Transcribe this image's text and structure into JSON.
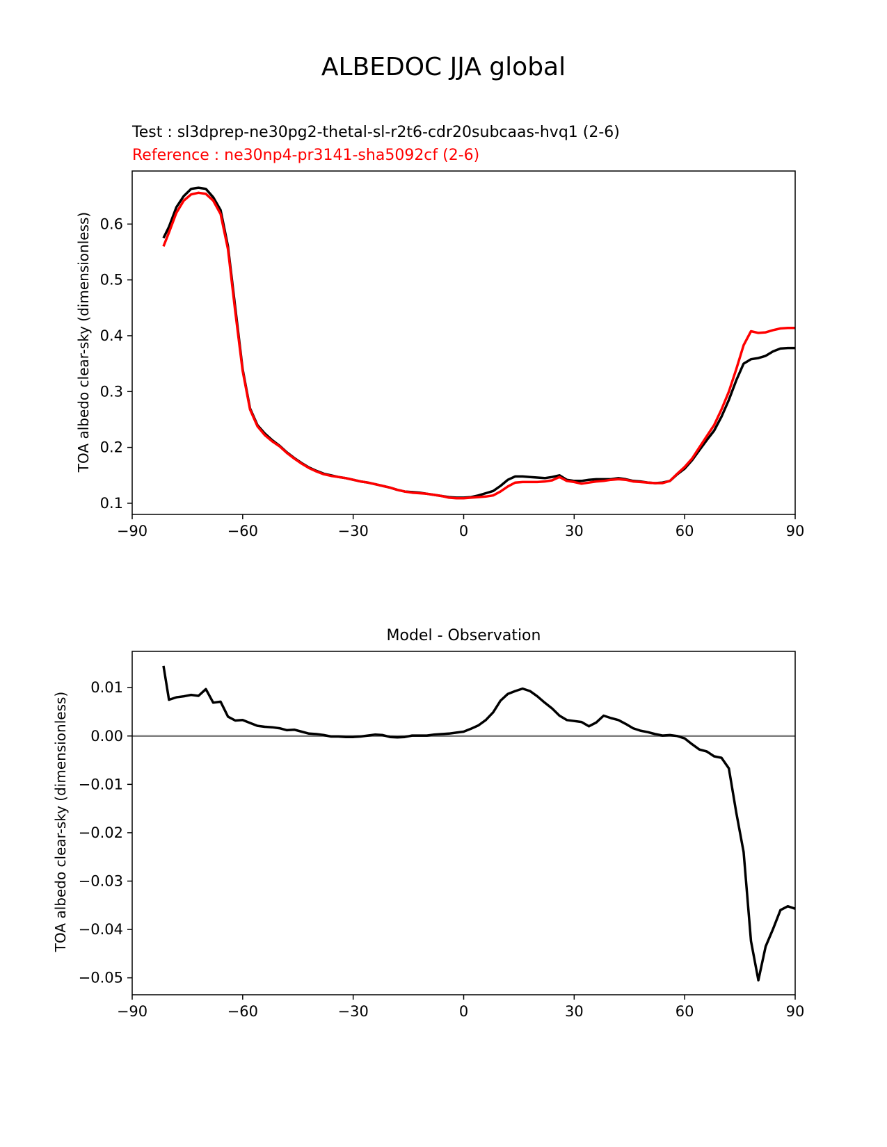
{
  "figure": {
    "title": "ALBEDOC JJA global"
  },
  "chart_data": [
    {
      "type": "line",
      "test_label": "Test : sl3dprep-ne30pg2-thetal-sl-r2t6-cdr20subcaas-hvq1 (2-6)",
      "reference_label": "Reference : ne30np4-pr3141-sha5092cf (2-6)",
      "xlabel": "",
      "ylabel": "TOA albedo clear-sky (dimensionless)",
      "xlim": [
        -90,
        90
      ],
      "ylim": [
        0.08,
        0.695
      ],
      "xticks": [
        -90,
        -60,
        -30,
        0,
        30,
        60,
        90
      ],
      "xtick_labels": [
        "−90",
        "−60",
        "−30",
        "0",
        "30",
        "60",
        "90"
      ],
      "yticks": [
        0.1,
        0.2,
        0.3,
        0.4,
        0.5,
        0.6
      ],
      "ytick_labels": [
        "0.1",
        "0.2",
        "0.3",
        "0.4",
        "0.5",
        "0.6"
      ],
      "grid": false,
      "series": [
        {
          "role": "test",
          "color": "#000000",
          "x": [
            -81.5,
            -80,
            -78,
            -76,
            -74,
            -72,
            -70,
            -68,
            -66,
            -64,
            -62,
            -60,
            -58,
            -56,
            -54,
            -52,
            -50,
            -48,
            -46,
            -44,
            -42,
            -40,
            -38,
            -36,
            -34,
            -32,
            -30,
            -28,
            -26,
            -24,
            -22,
            -20,
            -18,
            -16,
            -14,
            -12,
            -10,
            -8,
            -6,
            -4,
            -2,
            0,
            2,
            4,
            6,
            8,
            10,
            12,
            14,
            16,
            18,
            20,
            22,
            24,
            26,
            28,
            30,
            32,
            34,
            36,
            38,
            40,
            42,
            44,
            46,
            48,
            50,
            52,
            54,
            56,
            58,
            60,
            62,
            64,
            66,
            68,
            70,
            72,
            74,
            76,
            78,
            80,
            82,
            84,
            86,
            88,
            90
          ],
          "y": [
            0.575,
            0.595,
            0.63,
            0.65,
            0.663,
            0.665,
            0.663,
            0.648,
            0.625,
            0.56,
            0.45,
            0.34,
            0.27,
            0.24,
            0.225,
            0.213,
            0.203,
            0.191,
            0.181,
            0.172,
            0.164,
            0.158,
            0.153,
            0.15,
            0.147,
            0.145,
            0.142,
            0.139,
            0.137,
            0.134,
            0.131,
            0.128,
            0.124,
            0.121,
            0.12,
            0.119,
            0.117,
            0.115,
            0.113,
            0.111,
            0.11,
            0.11,
            0.111,
            0.114,
            0.118,
            0.122,
            0.131,
            0.142,
            0.148,
            0.148,
            0.147,
            0.146,
            0.145,
            0.147,
            0.15,
            0.142,
            0.14,
            0.14,
            0.142,
            0.143,
            0.143,
            0.143,
            0.145,
            0.143,
            0.14,
            0.139,
            0.137,
            0.136,
            0.137,
            0.14,
            0.152,
            0.162,
            0.177,
            0.195,
            0.213,
            0.23,
            0.255,
            0.285,
            0.32,
            0.35,
            0.358,
            0.36,
            0.364,
            0.372,
            0.377,
            0.378,
            0.378
          ]
        },
        {
          "role": "reference",
          "color": "#ff0000",
          "x": [
            -81.5,
            -80,
            -78,
            -76,
            -74,
            -72,
            -70,
            -68,
            -66,
            -64,
            -62,
            -60,
            -58,
            -56,
            -54,
            -52,
            -50,
            -48,
            -46,
            -44,
            -42,
            -40,
            -38,
            -36,
            -34,
            -32,
            -30,
            -28,
            -26,
            -24,
            -22,
            -20,
            -18,
            -16,
            -14,
            -12,
            -10,
            -8,
            -6,
            -4,
            -2,
            0,
            2,
            4,
            6,
            8,
            10,
            12,
            14,
            16,
            18,
            20,
            22,
            24,
            26,
            28,
            30,
            32,
            34,
            36,
            38,
            40,
            42,
            44,
            46,
            48,
            50,
            52,
            54,
            56,
            58,
            60,
            62,
            64,
            66,
            68,
            70,
            72,
            74,
            76,
            78,
            80,
            82,
            84,
            86,
            88,
            90
          ],
          "y": [
            0.56,
            0.585,
            0.62,
            0.642,
            0.653,
            0.656,
            0.654,
            0.642,
            0.618,
            0.555,
            0.443,
            0.337,
            0.268,
            0.238,
            0.222,
            0.211,
            0.202,
            0.19,
            0.18,
            0.171,
            0.163,
            0.157,
            0.152,
            0.149,
            0.147,
            0.145,
            0.142,
            0.139,
            0.137,
            0.134,
            0.131,
            0.128,
            0.124,
            0.121,
            0.119,
            0.118,
            0.117,
            0.115,
            0.113,
            0.11,
            0.109,
            0.109,
            0.11,
            0.111,
            0.112,
            0.114,
            0.121,
            0.13,
            0.137,
            0.138,
            0.138,
            0.138,
            0.139,
            0.141,
            0.147,
            0.14,
            0.138,
            0.135,
            0.137,
            0.139,
            0.14,
            0.142,
            0.143,
            0.142,
            0.139,
            0.138,
            0.137,
            0.136,
            0.136,
            0.14,
            0.153,
            0.165,
            0.18,
            0.2,
            0.22,
            0.24,
            0.268,
            0.3,
            0.34,
            0.383,
            0.408,
            0.405,
            0.406,
            0.41,
            0.413,
            0.414,
            0.414
          ]
        }
      ]
    },
    {
      "type": "line",
      "title": "Model - Observation",
      "xlabel": "",
      "ylabel": "TOA albedo clear-sky (dimensionless)",
      "xlim": [
        -90,
        90
      ],
      "ylim": [
        -0.0535,
        0.0175
      ],
      "xticks": [
        -90,
        -60,
        -30,
        0,
        30,
        60,
        90
      ],
      "xtick_labels": [
        "−90",
        "−60",
        "−30",
        "0",
        "30",
        "60",
        "90"
      ],
      "yticks": [
        0.01,
        0.0,
        -0.01,
        -0.02,
        -0.03,
        -0.04,
        -0.05
      ],
      "ytick_labels": [
        "0.01",
        "0.00",
        "−0.01",
        "−0.02",
        "−0.03",
        "−0.04",
        "−0.05"
      ],
      "grid": false,
      "zero_line_color": "#808080",
      "series": [
        {
          "role": "difference",
          "color": "#000000",
          "x": [
            -81.5,
            -80,
            -78,
            -76,
            -74,
            -72,
            -70,
            -68,
            -66,
            -64,
            -62,
            -60,
            -58,
            -56,
            -54,
            -52,
            -50,
            -48,
            -46,
            -44,
            -42,
            -40,
            -38,
            -36,
            -34,
            -32,
            -30,
            -28,
            -26,
            -24,
            -22,
            -20,
            -18,
            -16,
            -14,
            -12,
            -10,
            -8,
            -6,
            -4,
            -2,
            0,
            2,
            4,
            6,
            8,
            10,
            12,
            14,
            16,
            18,
            20,
            22,
            24,
            26,
            28,
            30,
            32,
            34,
            36,
            38,
            40,
            42,
            44,
            46,
            48,
            50,
            52,
            54,
            56,
            58,
            60,
            62,
            64,
            66,
            68,
            70,
            72,
            74,
            76,
            78,
            80,
            82,
            84,
            86,
            88,
            90
          ],
          "y": [
            0.0145,
            0.0075,
            0.008,
            0.0082,
            0.0085,
            0.0083,
            0.0097,
            0.0069,
            0.0071,
            0.004,
            0.0032,
            0.0033,
            0.0027,
            0.0021,
            0.0019,
            0.0018,
            0.0016,
            0.0012,
            0.0013,
            0.0009,
            0.0005,
            0.0004,
            0.0002,
            -0.0001,
            -0.0001,
            -0.0002,
            -0.0002,
            -0.0001,
            0.0001,
            0.0003,
            0.0002,
            -0.0002,
            -0.0003,
            -0.0002,
            0.0001,
            0.0001,
            0.0001,
            0.0003,
            0.0004,
            0.0005,
            0.0007,
            0.0009,
            0.0015,
            0.0022,
            0.0033,
            0.0049,
            0.0073,
            0.0087,
            0.0093,
            0.0098,
            0.0093,
            0.0082,
            0.0069,
            0.0057,
            0.0042,
            0.0033,
            0.0031,
            0.0029,
            0.002,
            0.0028,
            0.0042,
            0.0037,
            0.0033,
            0.0025,
            0.0016,
            0.0011,
            0.0008,
            0.0004,
            0.0001,
            0.0002,
            0.0,
            -0.0005,
            -0.0017,
            -0.0028,
            -0.0032,
            -0.0042,
            -0.0045,
            -0.0067,
            -0.0158,
            -0.024,
            -0.0424,
            -0.0505,
            -0.0435,
            -0.0399,
            -0.036,
            -0.0352,
            -0.0357
          ]
        }
      ]
    }
  ]
}
